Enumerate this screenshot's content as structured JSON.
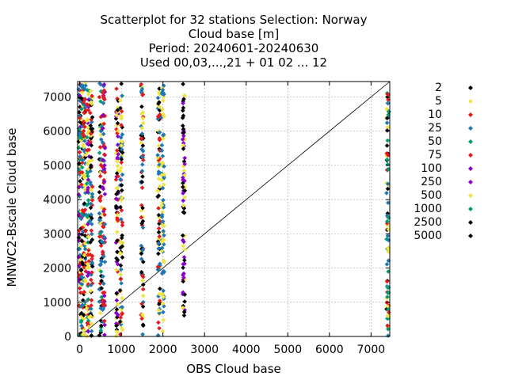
{
  "chart_data": {
    "type": "scatter",
    "title_lines": [
      "Scatterplot for   32 stations Selection: Norway",
      "Cloud base [m]",
      "Period: 20240601-20240630",
      "Used 00,03,...,21 + 01 02 ... 12"
    ],
    "xlabel": "OBS Cloud base",
    "ylabel": "MNWC2-Bscale Cloud base",
    "xlim": [
      -50,
      7450
    ],
    "ylim": [
      0,
      7450
    ],
    "xticks": [
      0,
      1000,
      2000,
      3000,
      4000,
      5000,
      6000,
      7000
    ],
    "yticks": [
      0,
      1000,
      2000,
      3000,
      4000,
      5000,
      6000,
      7000
    ],
    "grid": true,
    "diagonal": true,
    "legend_placement": "right",
    "legend": [
      {
        "label": "2",
        "color": "#000000"
      },
      {
        "label": "5",
        "color": "#f0e442"
      },
      {
        "label": "10",
        "color": "#e41a1c"
      },
      {
        "label": "25",
        "color": "#1f78b4"
      },
      {
        "label": "50",
        "color": "#009e73"
      },
      {
        "label": "75",
        "color": "#e41a1c"
      },
      {
        "label": "100",
        "color": "#8a00c8"
      },
      {
        "label": "250",
        "color": "#9400d3"
      },
      {
        "label": "500",
        "color": "#f0e442"
      },
      {
        "label": "1000",
        "color": "#009e73"
      },
      {
        "label": "2500",
        "color": "#000000"
      },
      {
        "label": "5000",
        "color": "#000000"
      }
    ],
    "columns": [
      {
        "x": 0,
        "ymin": 0,
        "ymax": 7400,
        "colors": [
          "#000000",
          "#f0e442",
          "#1f78b4",
          "#009e73",
          "#e41a1c",
          "#8a00c8"
        ]
      },
      {
        "x": 60,
        "ymin": 0,
        "ymax": 7400,
        "colors": [
          "#000000",
          "#f0e442",
          "#e41a1c",
          "#1f78b4",
          "#009e73"
        ]
      },
      {
        "x": 120,
        "ymin": 0,
        "ymax": 7400,
        "colors": [
          "#000000",
          "#f0e442",
          "#e41a1c",
          "#1f78b4"
        ]
      },
      {
        "x": 200,
        "ymin": 0,
        "ymax": 7400,
        "colors": [
          "#f0e442",
          "#e41a1c",
          "#009e73",
          "#8a00c8"
        ]
      },
      {
        "x": 280,
        "ymin": 0,
        "ymax": 7400,
        "colors": [
          "#000000",
          "#f0e442",
          "#e41a1c",
          "#1f78b4"
        ]
      },
      {
        "x": 500,
        "ymin": 0,
        "ymax": 7400,
        "colors": [
          "#000000",
          "#f0e442",
          "#e41a1c",
          "#1f78b4",
          "#009e73"
        ]
      },
      {
        "x": 580,
        "ymin": 0,
        "ymax": 7400,
        "colors": [
          "#e41a1c",
          "#8a00c8",
          "#1f78b4"
        ]
      },
      {
        "x": 900,
        "ymin": 0,
        "ymax": 7400,
        "colors": [
          "#000000",
          "#f0e442",
          "#e41a1c",
          "#8a00c8"
        ]
      },
      {
        "x": 1000,
        "ymin": 0,
        "ymax": 7400,
        "colors": [
          "#000000",
          "#e41a1c",
          "#1f78b4",
          "#f0e442"
        ]
      },
      {
        "x": 1500,
        "ymin": 0,
        "ymax": 7400,
        "colors": [
          "#000000",
          "#f0e442",
          "#e41a1c",
          "#1f78b4"
        ]
      },
      {
        "x": 1900,
        "ymin": 0,
        "ymax": 7400,
        "colors": [
          "#000000",
          "#f0e442",
          "#1f78b4",
          "#e41a1c"
        ]
      },
      {
        "x": 2000,
        "ymin": 0,
        "ymax": 7400,
        "colors": [
          "#f0e442",
          "#1f78b4"
        ]
      },
      {
        "x": 2500,
        "ymin": 600,
        "ymax": 7400,
        "colors": [
          "#000000",
          "#f0e442",
          "#8a00c8"
        ]
      },
      {
        "x": 7400,
        "ymin": 0,
        "ymax": 7400,
        "colors": [
          "#000000",
          "#f0e442",
          "#e41a1c",
          "#1f78b4",
          "#009e73"
        ]
      }
    ]
  }
}
